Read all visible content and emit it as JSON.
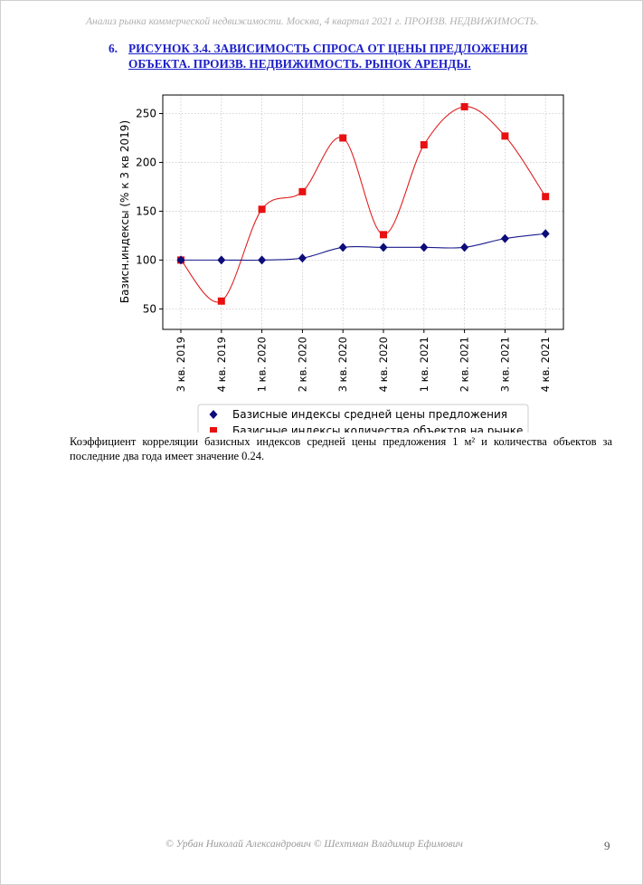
{
  "header": {
    "running": "Анализ рынка коммерческой недвижимости.   Москва,  4 квартал 2021 г.   ПРОИЗВ. НЕДВИЖИМОСТЬ."
  },
  "figure": {
    "number": "6.",
    "title_line1": "РИСУНОК 3.4. ЗАВИСИМОСТЬ СПРОСА ОТ ЦЕНЫ ПРЕДЛОЖЕНИЯ",
    "title_line2": "ОБЪЕКТА.  ПРОИЗВ. НЕДВИЖИМОСТЬ. РЫНОК АРЕНДЫ."
  },
  "chart_data": {
    "type": "line",
    "categories": [
      "3 кв. 2019",
      "4 кв. 2019",
      "1 кв. 2020",
      "2 кв. 2020",
      "3 кв. 2020",
      "4 кв. 2020",
      "1 кв. 2021",
      "2 кв. 2021",
      "3 кв. 2021",
      "4 кв. 2021"
    ],
    "series": [
      {
        "name": "Базисные индексы средней цены предложения",
        "values": [
          100,
          100,
          100,
          102,
          113,
          113,
          113,
          113,
          122,
          127
        ],
        "color": "#1a1a8c",
        "marker": "diamond",
        "marker_color": "#0c0c7a"
      },
      {
        "name": "Базисные индексы количества объектов на рынке",
        "values": [
          100,
          58,
          152,
          170,
          225,
          126,
          218,
          257,
          227,
          165
        ],
        "color": "#e02020",
        "marker": "square",
        "marker_color": "#e81010"
      }
    ],
    "ylabel": "Базисн.индексы (% к 3 кв 2019)",
    "xlabel": "",
    "ylim": [
      29,
      269
    ],
    "yticks": [
      50,
      100,
      150,
      200,
      250
    ],
    "grid": true,
    "legend_position": "bottom"
  },
  "body": {
    "paragraph": "Коэффициент корреляции базисных индексов средней цены предложения 1 м² и количества объектов за последние два года имеет значение 0.24."
  },
  "footer": {
    "copyright": "© Урбан Николай Александрович   © Шехтман Владимир Ефимович",
    "page_number": "9"
  }
}
